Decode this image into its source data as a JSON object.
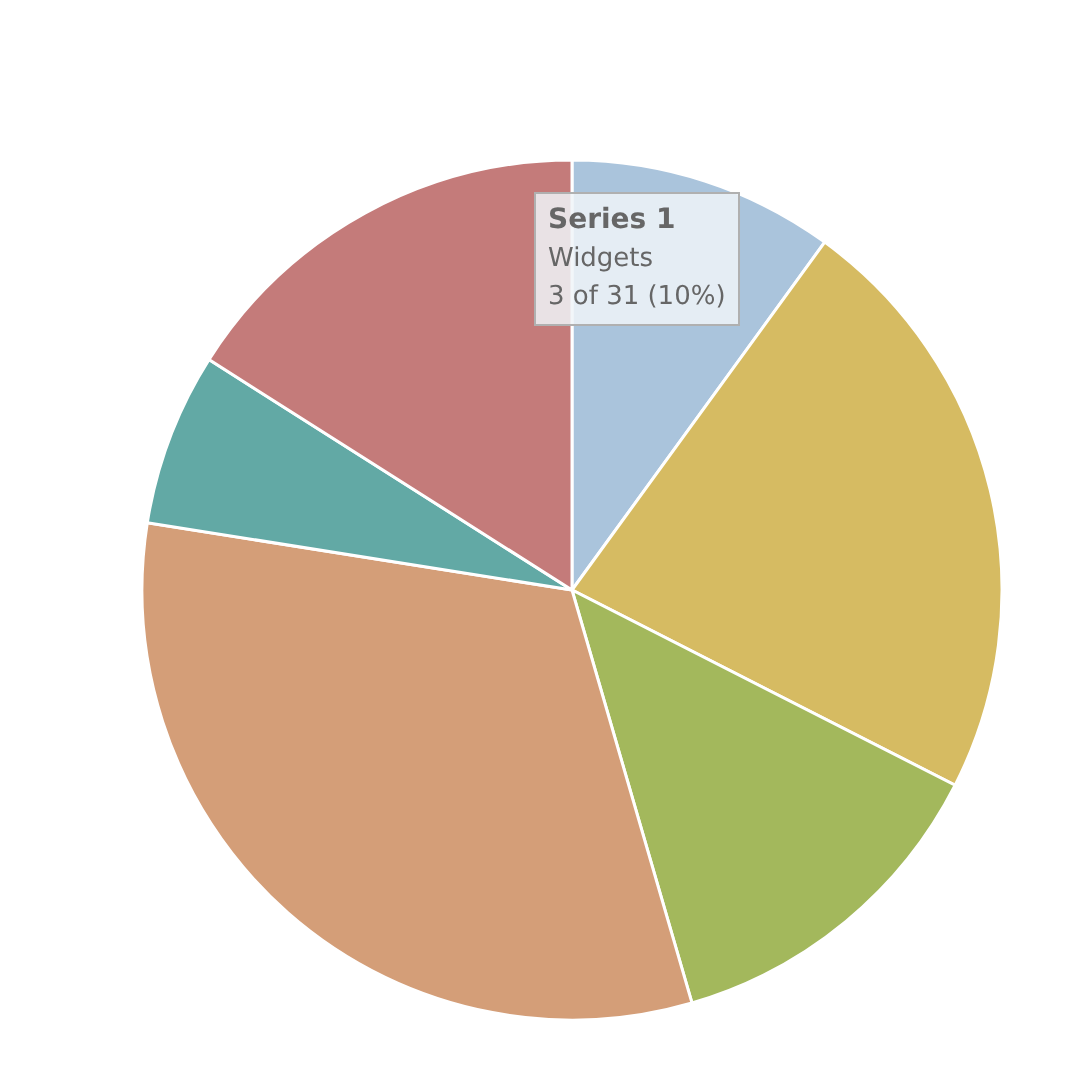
{
  "chart_data": {
    "type": "pie",
    "categories": [
      "Widgets",
      null,
      null,
      null,
      null,
      null
    ],
    "series": [
      {
        "name": "Series 1",
        "values": [
          10,
          22.5,
          13,
          32,
          6.5,
          16
        ]
      }
    ],
    "colors": [
      "#aac4dc",
      "#d6bb62",
      "#a3b85c",
      "#d49e78",
      "#62a9a5",
      "#c47b7a"
    ],
    "annotations": [
      "3 of 31 (10%)"
    ]
  }
}
